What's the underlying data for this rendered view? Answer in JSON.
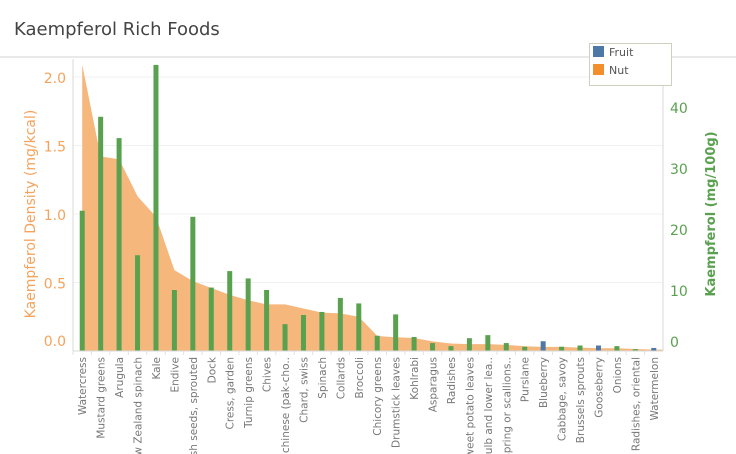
{
  "chart_data": {
    "type": "bar+area",
    "title": "Kaempferol Rich Foods",
    "categories": [
      "Watercress",
      "Mustard greens",
      "Arugula",
      "New Zealand spinach",
      "Kale",
      "Endive",
      "Radish seeds, sprouted",
      "Dock",
      "Cress, garden",
      "Turnip greens",
      "Chives",
      "Cabbage, chinese (pak-cho..",
      "Chard, swiss",
      "Spinach",
      "Collards",
      "Broccoli",
      "Chicory greens",
      "Drumstick leaves",
      "Kohlrabi",
      "Asparagus",
      "Radishes",
      "Sweet potato leaves",
      "Onions, bulb and lower lea..",
      "Onions, spring or scallions..",
      "Purslane",
      "Blueberry",
      "Cabbage, savoy",
      "Brussels sprouts",
      "Gooseberry",
      "Onions",
      "Radishes, oriental",
      "Watermelon"
    ],
    "category_labels_shown": [
      "Watercress",
      "Mustard greens",
      "Arugula",
      "ew Zealand spinach",
      "Kale",
      "Endive",
      "sh seeds, sprouted",
      "Dock",
      "Cress, garden",
      "Turnip greens",
      "Chives",
      ", chinese (pak-cho..",
      "Chard, swiss",
      "Spinach",
      "Collards",
      "Broccoli",
      "Chicory greens",
      "Drumstick leaves",
      "Kohlrabi",
      "Asparagus",
      "Radishes",
      "weet potato leaves",
      "bulb and lower lea..",
      "spring or scallions..",
      "Purslane",
      "Blueberry",
      "Cabbage, savoy",
      "Brussels sprouts",
      "Gooseberry",
      "Onions",
      "Radishes, oriental",
      "Watermelon"
    ],
    "area_series": {
      "axis": "left",
      "color": "#f5b77c",
      "values": [
        2.09,
        1.42,
        1.4,
        1.13,
        0.98,
        0.59,
        0.51,
        0.46,
        0.41,
        0.37,
        0.34,
        0.34,
        0.31,
        0.28,
        0.275,
        0.25,
        0.11,
        0.1,
        0.095,
        0.07,
        0.055,
        0.05,
        0.05,
        0.045,
        0.035,
        0.03,
        0.03,
        0.025,
        0.02,
        0.02,
        0.015,
        0.01
      ]
    },
    "bar_series": {
      "axis": "right",
      "values": [
        23.0,
        38.4,
        34.9,
        15.7,
        46.9,
        10.0,
        22.0,
        10.4,
        13.1,
        11.9,
        10.0,
        4.4,
        5.9,
        6.4,
        8.7,
        7.8,
        2.5,
        6.0,
        2.3,
        1.3,
        0.8,
        2.1,
        2.6,
        1.3,
        0.7,
        1.6,
        0.7,
        0.9,
        0.9,
        0.8,
        0.3,
        0.5
      ],
      "colors": [
        "#59a14f",
        "#59a14f",
        "#59a14f",
        "#59a14f",
        "#59a14f",
        "#59a14f",
        "#59a14f",
        "#59a14f",
        "#59a14f",
        "#59a14f",
        "#59a14f",
        "#59a14f",
        "#59a14f",
        "#59a14f",
        "#59a14f",
        "#59a14f",
        "#59a14f",
        "#59a14f",
        "#59a14f",
        "#59a14f",
        "#59a14f",
        "#59a14f",
        "#59a14f",
        "#59a14f",
        "#59a14f",
        "#4e79a7",
        "#59a14f",
        "#59a14f",
        "#4e79a7",
        "#59a14f",
        "#59a14f",
        "#4e79a7"
      ]
    },
    "left_axis": {
      "label": "Kaempferol Density (mg/kcal)",
      "ticks": [
        "0.0",
        "0.5",
        "1.0",
        "1.5",
        "2.0"
      ],
      "tick_values": [
        0,
        0.5,
        1,
        1.5,
        2
      ],
      "ylim": [
        0,
        2.15
      ],
      "color": "#f5a35c"
    },
    "right_axis": {
      "label": "Kaempferol (mg/100g)",
      "ticks": [
        "0",
        "10",
        "20",
        "30",
        "40"
      ],
      "tick_values": [
        0,
        10,
        20,
        30,
        40
      ],
      "ylim": [
        0,
        48
      ],
      "color": "#59a14f"
    },
    "grid": true,
    "legend": {
      "placement": "top-right",
      "items": [
        {
          "label": "Fruit",
          "color": "#4e79a7"
        },
        {
          "label": "Nut",
          "color": "#f28e2b"
        },
        {
          "label": "",
          "color": "#59a14f"
        }
      ]
    }
  }
}
